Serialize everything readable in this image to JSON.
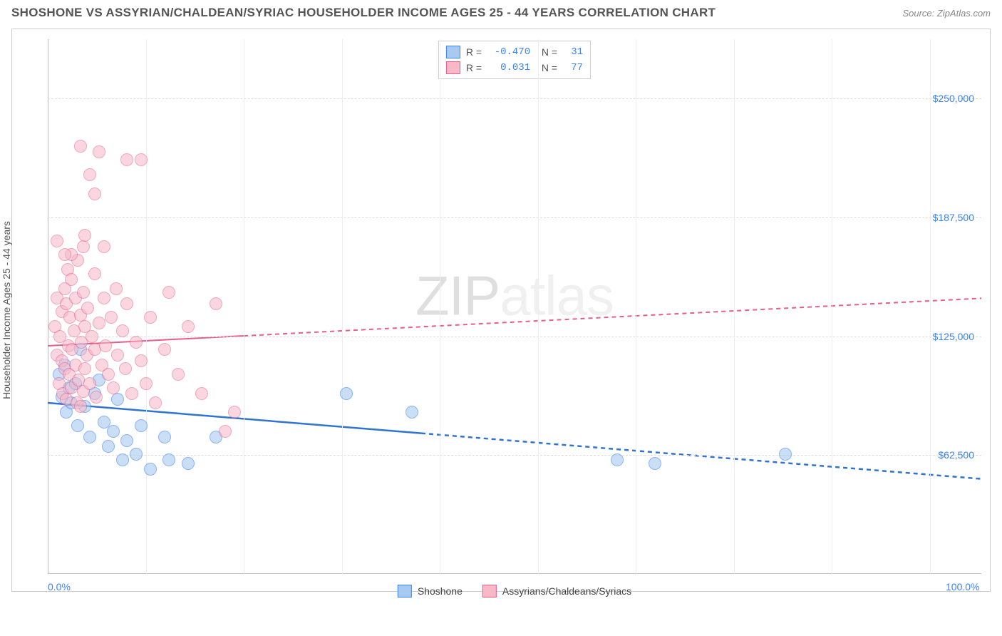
{
  "title": "SHOSHONE VS ASSYRIAN/CHALDEAN/SYRIAC HOUSEHOLDER INCOME AGES 25 - 44 YEARS CORRELATION CHART",
  "source": "Source: ZipAtlas.com",
  "watermark_bold": "ZIP",
  "watermark_thin": "atlas",
  "chart": {
    "type": "scatter",
    "y_axis_label": "Householder Income Ages 25 - 44 years",
    "xlim": [
      0,
      100
    ],
    "ylim": [
      0,
      281250
    ],
    "x_ticks": [
      0,
      100
    ],
    "x_tick_labels": [
      "0.0%",
      "100.0%"
    ],
    "x_minor_ticks": [
      10.5,
      21,
      31.5,
      42,
      52.5,
      63,
      73.5,
      84,
      94.5
    ],
    "y_ticks": [
      62500,
      125000,
      187500,
      250000
    ],
    "y_tick_labels": [
      "$62,500",
      "$125,000",
      "$187,500",
      "$250,000"
    ],
    "grid_color": "#dddddd",
    "background": "#ffffff",
    "series": [
      {
        "name": "Shoshone",
        "marker_fill": "#a8caf0",
        "marker_stroke": "#3b82f6",
        "marker_opacity": 0.6,
        "marker_size": 18,
        "line_color": "#2f74d0",
        "line_width": 2.5,
        "trend": {
          "x1": 0,
          "y1": 90000,
          "x2": 100,
          "y2": 50000,
          "solid_until_x": 40
        },
        "R": "-0.470",
        "N": "31",
        "points": [
          [
            1.2,
            105000
          ],
          [
            1.5,
            93000
          ],
          [
            1.8,
            110000
          ],
          [
            2.0,
            85000
          ],
          [
            2.3,
            98000
          ],
          [
            2.5,
            90000
          ],
          [
            3.0,
            100000
          ],
          [
            3.2,
            78000
          ],
          [
            3.5,
            118000
          ],
          [
            4.0,
            88000
          ],
          [
            4.5,
            72000
          ],
          [
            5.0,
            95000
          ],
          [
            5.5,
            102000
          ],
          [
            6.0,
            80000
          ],
          [
            6.5,
            67000
          ],
          [
            7.0,
            75000
          ],
          [
            7.5,
            92000
          ],
          [
            8.0,
            60000
          ],
          [
            8.5,
            70000
          ],
          [
            9.5,
            63000
          ],
          [
            10.0,
            78000
          ],
          [
            11.0,
            55000
          ],
          [
            12.5,
            72000
          ],
          [
            13.0,
            60000
          ],
          [
            15.0,
            58000
          ],
          [
            18.0,
            72000
          ],
          [
            32.0,
            95000
          ],
          [
            39.0,
            85000
          ],
          [
            61.0,
            60000
          ],
          [
            65.0,
            58000
          ],
          [
            79.0,
            63000
          ]
        ]
      },
      {
        "name": "Assyrians/Chaldeans/Syriacs",
        "marker_fill": "#f7b8c8",
        "marker_stroke": "#e85d8a",
        "marker_opacity": 0.55,
        "marker_size": 18,
        "line_color": "#e85d8a",
        "line_width": 2,
        "trend": {
          "x1": 0,
          "y1": 120000,
          "x2": 100,
          "y2": 145000,
          "solid_until_x": 21
        },
        "R": "0.031",
        "N": "77",
        "points": [
          [
            0.8,
            130000
          ],
          [
            1.0,
            115000
          ],
          [
            1.0,
            145000
          ],
          [
            1.2,
            100000
          ],
          [
            1.3,
            125000
          ],
          [
            1.5,
            112000
          ],
          [
            1.5,
            138000
          ],
          [
            1.6,
            95000
          ],
          [
            1.8,
            150000
          ],
          [
            1.8,
            108000
          ],
          [
            2.0,
            142000
          ],
          [
            2.0,
            92000
          ],
          [
            2.1,
            160000
          ],
          [
            2.2,
            120000
          ],
          [
            2.3,
            105000
          ],
          [
            2.4,
            135000
          ],
          [
            2.5,
            98000
          ],
          [
            2.5,
            155000
          ],
          [
            2.6,
            118000
          ],
          [
            2.8,
            128000
          ],
          [
            3.0,
            110000
          ],
          [
            3.0,
            145000
          ],
          [
            3.1,
            90000
          ],
          [
            3.2,
            165000
          ],
          [
            3.3,
            102000
          ],
          [
            3.5,
            136000
          ],
          [
            3.5,
            88000
          ],
          [
            3.6,
            122000
          ],
          [
            3.8,
            148000
          ],
          [
            3.8,
            96000
          ],
          [
            4.0,
            130000
          ],
          [
            4.0,
            108000
          ],
          [
            4.2,
            115000
          ],
          [
            4.3,
            140000
          ],
          [
            4.5,
            100000
          ],
          [
            4.7,
            125000
          ],
          [
            5.0,
            158000
          ],
          [
            5.0,
            118000
          ],
          [
            5.2,
            93000
          ],
          [
            5.5,
            132000
          ],
          [
            5.8,
            110000
          ],
          [
            6.0,
            145000
          ],
          [
            6.2,
            120000
          ],
          [
            6.5,
            105000
          ],
          [
            6.8,
            135000
          ],
          [
            7.0,
            98000
          ],
          [
            7.3,
            150000
          ],
          [
            7.5,
            115000
          ],
          [
            8.0,
            128000
          ],
          [
            8.3,
            108000
          ],
          [
            8.5,
            142000
          ],
          [
            9.0,
            95000
          ],
          [
            9.5,
            122000
          ],
          [
            10.0,
            112000
          ],
          [
            10.5,
            100000
          ],
          [
            11.0,
            135000
          ],
          [
            11.5,
            90000
          ],
          [
            12.5,
            118000
          ],
          [
            13.0,
            148000
          ],
          [
            14.0,
            105000
          ],
          [
            15.0,
            130000
          ],
          [
            16.5,
            95000
          ],
          [
            18.0,
            142000
          ],
          [
            19.0,
            75000
          ],
          [
            20.0,
            85000
          ],
          [
            3.5,
            225000
          ],
          [
            4.5,
            210000
          ],
          [
            5.5,
            222000
          ],
          [
            8.5,
            218000
          ],
          [
            10.0,
            218000
          ],
          [
            1.0,
            175000
          ],
          [
            2.5,
            168000
          ],
          [
            3.8,
            172000
          ],
          [
            1.8,
            168000
          ],
          [
            4.0,
            178000
          ],
          [
            6.0,
            172000
          ],
          [
            5.0,
            200000
          ]
        ]
      }
    ]
  }
}
